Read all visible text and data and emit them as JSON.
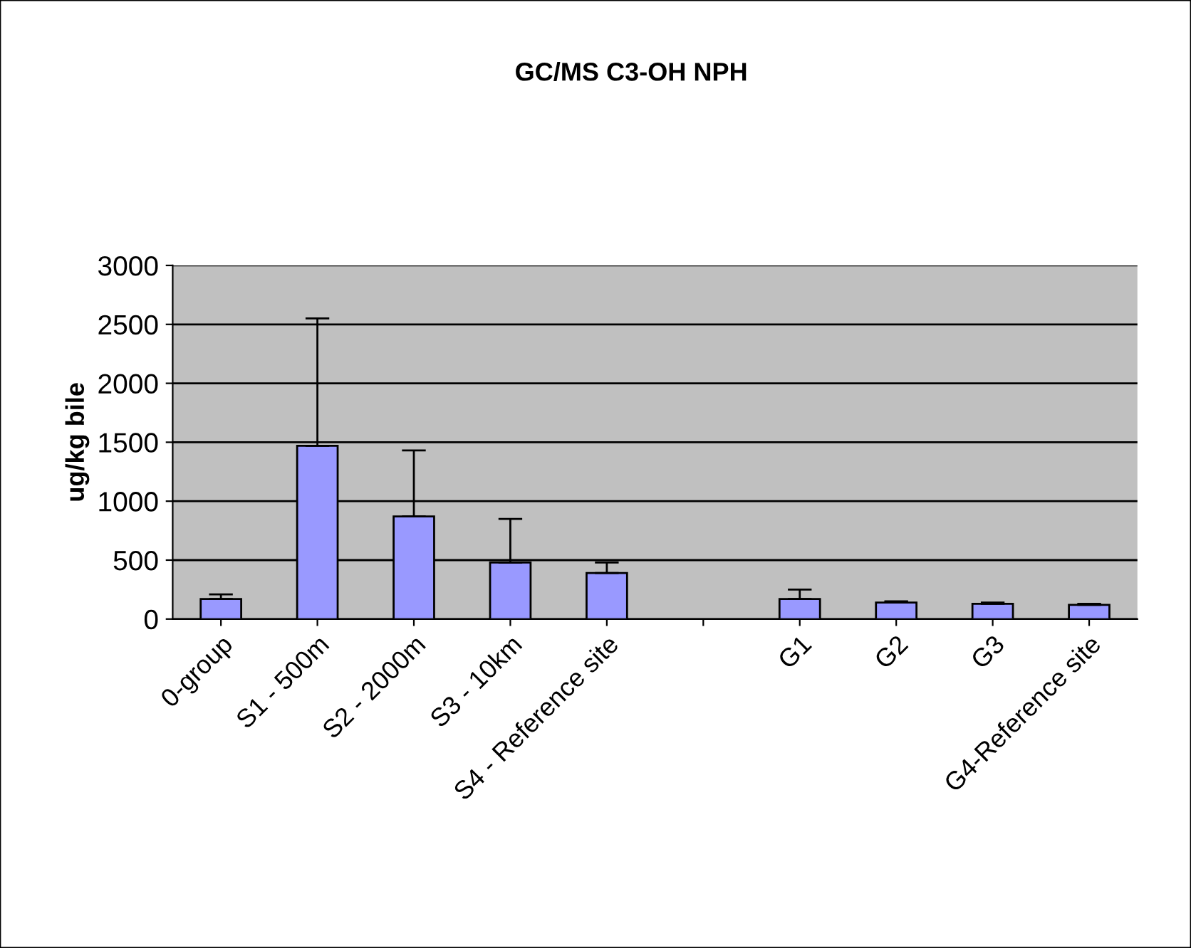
{
  "chart_data": {
    "type": "bar",
    "title": "GC/MS C3-OH NPH",
    "ylabel": "ug/kg bile",
    "categories": [
      "0-group",
      "S1 - 500m",
      "S2 - 2000m",
      "S3 - 10km",
      "S4 - Reference site",
      null,
      "G1",
      "G2",
      "G3",
      "G4-Reference site"
    ],
    "values": [
      170,
      1470,
      870,
      480,
      390,
      null,
      170,
      140,
      130,
      120
    ],
    "errors": [
      [
        170,
        210
      ],
      [
        1470,
        2550
      ],
      [
        870,
        1430
      ],
      [
        480,
        850
      ],
      [
        390,
        480
      ],
      null,
      [
        170,
        250
      ],
      [
        140,
        150
      ],
      [
        130,
        140
      ],
      [
        120,
        130
      ]
    ],
    "color": "#9999ff",
    "ylim": [
      0,
      3000
    ],
    "yticks": [
      0,
      500,
      1000,
      1500,
      2000,
      2500,
      3000
    ],
    "grid": "y",
    "legend": false
  }
}
